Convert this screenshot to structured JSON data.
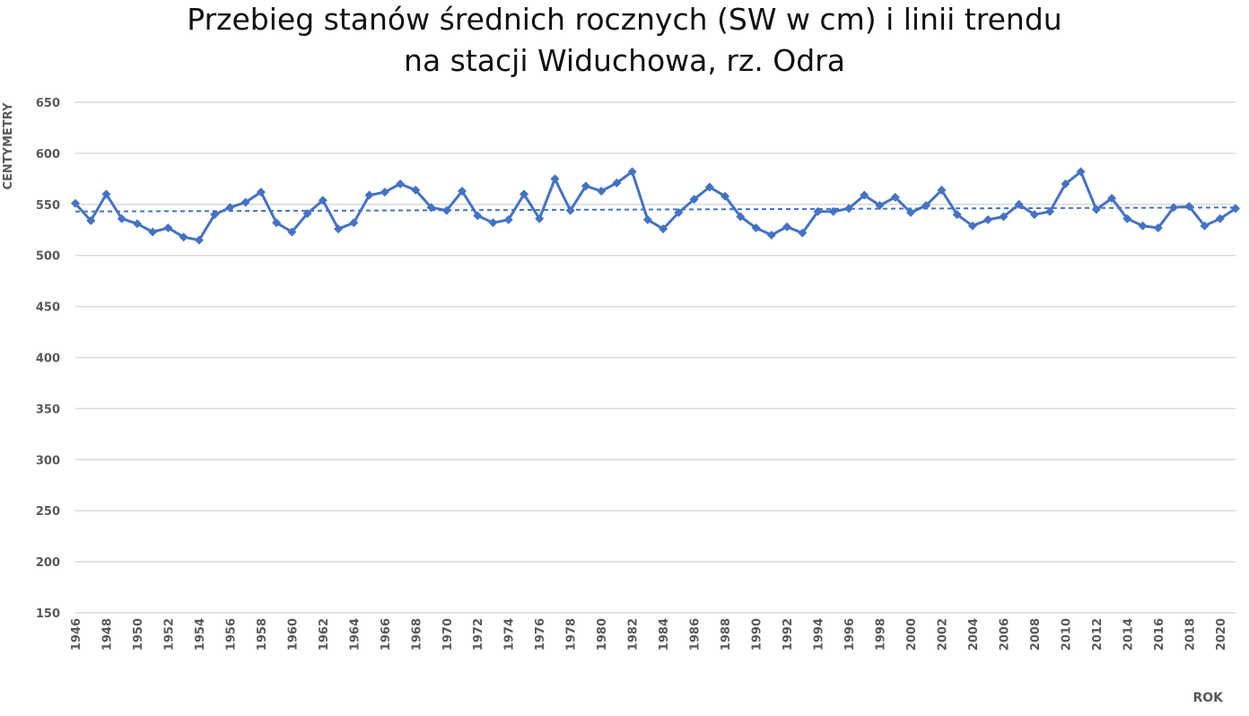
{
  "chart_data": {
    "type": "line",
    "title": [
      "Przebieg stanów średnich rocznych (SW w cm) i linii trendu",
      "na stacji Widuchowa, rz. Odra"
    ],
    "xlabel": "ROK",
    "ylabel": "CENTYMETRY",
    "ylim": [
      150,
      650
    ],
    "y_ticks": [
      150,
      200,
      250,
      300,
      350,
      400,
      450,
      500,
      550,
      600,
      650
    ],
    "x_ticks": [
      1946,
      1948,
      1950,
      1952,
      1954,
      1956,
      1958,
      1960,
      1962,
      1964,
      1966,
      1968,
      1970,
      1972,
      1974,
      1976,
      1978,
      1980,
      1982,
      1984,
      1986,
      1988,
      1990,
      1992,
      1994,
      1996,
      1998,
      2000,
      2002,
      2004,
      2006,
      2008,
      2010,
      2012,
      2014,
      2016,
      2018,
      2020
    ],
    "grid": "horizontal",
    "colors": {
      "series": "#4472c4",
      "grid": "#d9d9d9",
      "text": "#595959"
    },
    "series": [
      {
        "style": "line-with-diamond-markers",
        "x": [
          1946,
          1947,
          1948,
          1949,
          1950,
          1951,
          1952,
          1953,
          1954,
          1955,
          1956,
          1957,
          1958,
          1959,
          1960,
          1961,
          1962,
          1963,
          1964,
          1965,
          1966,
          1967,
          1968,
          1969,
          1970,
          1971,
          1972,
          1973,
          1974,
          1975,
          1976,
          1977,
          1978,
          1979,
          1980,
          1981,
          1982,
          1983,
          1984,
          1985,
          1986,
          1987,
          1988,
          1989,
          1990,
          1991,
          1992,
          1993,
          1994,
          1995,
          1996,
          1997,
          1998,
          1999,
          2000,
          2001,
          2002,
          2003,
          2004,
          2005,
          2006,
          2007,
          2008,
          2009,
          2010,
          2011,
          2012,
          2013,
          2014,
          2015,
          2016,
          2017,
          2018,
          2019,
          2020,
          2021
        ],
        "values": [
          551,
          534,
          560,
          536,
          531,
          523,
          527,
          518,
          515,
          540,
          547,
          552,
          562,
          532,
          523,
          541,
          554,
          526,
          532,
          559,
          562,
          570,
          564,
          547,
          544,
          563,
          539,
          532,
          535,
          560,
          536,
          575,
          544,
          568,
          563,
          571,
          582,
          535,
          526,
          542,
          555,
          567,
          558,
          538,
          527,
          520,
          528,
          522,
          543,
          543,
          546,
          559,
          549,
          557,
          542,
          549,
          564,
          540,
          529,
          535,
          538,
          550,
          540,
          543,
          570,
          582,
          545,
          556,
          536,
          529,
          527,
          547,
          548,
          529,
          536,
          546
        ]
      },
      {
        "style": "dashed-trend",
        "x": [
          1946,
          2021
        ],
        "values": [
          543,
          547
        ]
      }
    ]
  }
}
